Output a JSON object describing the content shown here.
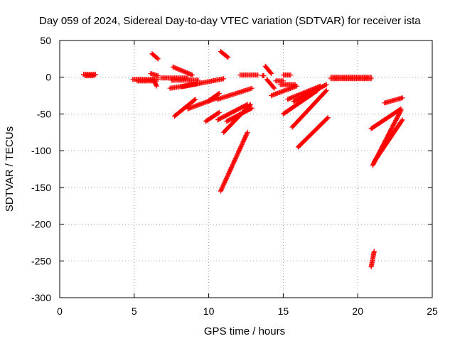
{
  "chart_data": {
    "type": "scatter",
    "title": "Day 059 of 2024, Sidereal Day-to-day VTEC variation (SDTVAR) for receiver ista",
    "xlabel": "GPS time / hours",
    "ylabel": "SDTVAR / TECUs",
    "xlim": [
      0,
      25
    ],
    "ylim": [
      -300,
      50
    ],
    "xticks": [
      "0",
      "5",
      "10",
      "15",
      "20",
      "25"
    ],
    "yticks": [
      "50",
      "0",
      "-50",
      "-100",
      "-150",
      "-200",
      "-250",
      "-300"
    ],
    "grid": true,
    "marker": "+",
    "color": "#ff0000",
    "segments": [
      {
        "x": [
          1.6,
          2.4
        ],
        "y": [
          4,
          4
        ]
      },
      {
        "x": [
          1.7,
          2.3
        ],
        "y": [
          2,
          2
        ]
      },
      {
        "x": [
          4.9,
          6.6
        ],
        "y": [
          -3,
          -3
        ]
      },
      {
        "x": [
          5.2,
          6.2
        ],
        "y": [
          -5,
          -5
        ]
      },
      {
        "x": [
          6.1,
          6.6
        ],
        "y": [
          5,
          2
        ]
      },
      {
        "x": [
          6.2,
          6.6
        ],
        "y": [
          32,
          25
        ]
      },
      {
        "x": [
          6.3,
          6.5
        ],
        "y": [
          -3,
          -12
        ]
      },
      {
        "x": [
          6.8,
          8.6
        ],
        "y": [
          -1,
          -1
        ]
      },
      {
        "x": [
          7.5,
          9.3
        ],
        "y": [
          -4,
          -4
        ]
      },
      {
        "x": [
          7.6,
          8.9
        ],
        "y": [
          14,
          3
        ]
      },
      {
        "x": [
          7.4,
          9.2
        ],
        "y": [
          -15,
          -9
        ]
      },
      {
        "x": [
          8.2,
          11.0
        ],
        "y": [
          -13,
          -2
        ]
      },
      {
        "x": [
          7.7,
          9.1
        ],
        "y": [
          -53,
          -30
        ]
      },
      {
        "x": [
          8.6,
          10.6
        ],
        "y": [
          -43,
          -28
        ]
      },
      {
        "x": [
          9.8,
          10.7
        ],
        "y": [
          -60,
          -48
        ]
      },
      {
        "x": [
          10.0,
          10.7
        ],
        "y": [
          -32,
          -22
        ]
      },
      {
        "x": [
          10.8,
          11.3
        ],
        "y": [
          35,
          27
        ]
      },
      {
        "x": [
          10.6,
          12.9
        ],
        "y": [
          -30,
          -15
        ]
      },
      {
        "x": [
          10.6,
          12.6
        ],
        "y": [
          -58,
          -37
        ]
      },
      {
        "x": [
          11.0,
          12.8
        ],
        "y": [
          -75,
          -37
        ]
      },
      {
        "x": [
          11.2,
          12.9
        ],
        "y": [
          -60,
          -42
        ]
      },
      {
        "x": [
          10.8,
          12.6
        ],
        "y": [
          -155,
          -75
        ]
      },
      {
        "x": [
          12.1,
          13.3
        ],
        "y": [
          3,
          3
        ]
      },
      {
        "x": [
          13.6,
          13.7
        ],
        "y": [
          2,
          2
        ]
      },
      {
        "x": [
          13.8,
          14.2
        ],
        "y": [
          15,
          5
        ]
      },
      {
        "x": [
          13.9,
          14.4
        ],
        "y": [
          -3,
          -15
        ]
      },
      {
        "x": [
          14.2,
          15.9
        ],
        "y": [
          -25,
          -12
        ]
      },
      {
        "x": [
          14.5,
          15.0
        ],
        "y": [
          -5,
          -5
        ]
      },
      {
        "x": [
          14.8,
          15.8
        ],
        "y": [
          -10,
          -10
        ]
      },
      {
        "x": [
          15.0,
          15.5
        ],
        "y": [
          3,
          3
        ]
      },
      {
        "x": [
          15.0,
          17.3
        ],
        "y": [
          -50,
          -18
        ]
      },
      {
        "x": [
          15.3,
          17.5
        ],
        "y": [
          -30,
          -12
        ]
      },
      {
        "x": [
          15.7,
          17.9
        ],
        "y": [
          -33,
          -10
        ]
      },
      {
        "x": [
          15.6,
          17.9
        ],
        "y": [
          -68,
          -18
        ]
      },
      {
        "x": [
          16.0,
          18.0
        ],
        "y": [
          -95,
          -55
        ]
      },
      {
        "x": [
          18.2,
          20.9
        ],
        "y": [
          -2,
          -2
        ]
      },
      {
        "x": [
          18.2,
          20.9
        ],
        "y": [
          0,
          0
        ]
      },
      {
        "x": [
          20.9,
          22.9
        ],
        "y": [
          -70,
          -43
        ]
      },
      {
        "x": [
          21.0,
          22.9
        ],
        "y": [
          -120,
          -45
        ]
      },
      {
        "x": [
          21.1,
          23.0
        ],
        "y": [
          -115,
          -58
        ]
      },
      {
        "x": [
          21.8,
          23.0
        ],
        "y": [
          -35,
          -28
        ]
      },
      {
        "x": [
          20.9,
          21.1
        ],
        "y": [
          -258,
          -237
        ]
      }
    ]
  }
}
